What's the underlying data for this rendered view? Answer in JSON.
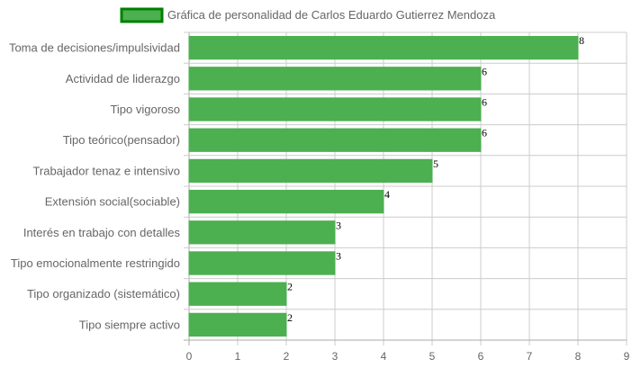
{
  "chart_data": {
    "type": "bar",
    "orientation": "horizontal",
    "title": "",
    "xlabel": "",
    "ylabel": "",
    "legend": {
      "position": "top",
      "entries": [
        "Gráfica de personalidad de Carlos Eduardo Gutierrez Mendoza"
      ]
    },
    "categories": [
      "Toma de decisiones/impulsividad",
      "Actividad de liderazgo",
      "Tipo vigoroso",
      "Tipo teórico(pensador)",
      "Trabajador tenaz e intensivo",
      "Extensión social(sociable)",
      "Interés en trabajo con detalles",
      "Tipo emocionalmente restringido",
      "Tipo organizado (sistemático)",
      "Tipo siempre activo"
    ],
    "series": [
      {
        "name": "Gráfica de personalidad de Carlos Eduardo Gutierrez Mendoza",
        "values": [
          8,
          6,
          6,
          6,
          5,
          4,
          3,
          3,
          2,
          2
        ]
      }
    ],
    "xlim": [
      0,
      9
    ],
    "xticks": [
      "0",
      "1",
      "2",
      "3",
      "4",
      "5",
      "6",
      "7",
      "8",
      "9"
    ],
    "grid": true,
    "data_labels": true,
    "colors": {
      "bar_fill": "#4caf50",
      "bar_border": "#008000",
      "grid": "#cccccc",
      "axis_grid": "#aaaaaa"
    }
  }
}
